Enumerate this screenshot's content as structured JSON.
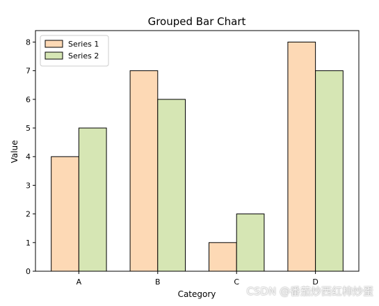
{
  "chart_data": {
    "type": "bar",
    "title": "Grouped Bar Chart",
    "xlabel": "Category",
    "ylabel": "Value",
    "categories": [
      "A",
      "B",
      "C",
      "D"
    ],
    "series": [
      {
        "name": "Series 1",
        "values": [
          4,
          7,
          1,
          8
        ],
        "color": "#FDD9B5"
      },
      {
        "name": "Series 2",
        "values": [
          5,
          6,
          2,
          7
        ],
        "color": "#D6E6B4"
      }
    ],
    "ylim": [
      0,
      8.4
    ],
    "yticks": [
      0,
      1,
      2,
      3,
      4,
      5,
      6,
      7,
      8
    ],
    "legend": "top-left",
    "grid": false,
    "edge_color": "#000000"
  },
  "watermark": "CSDN @番茄炒西红柿炒蛋"
}
